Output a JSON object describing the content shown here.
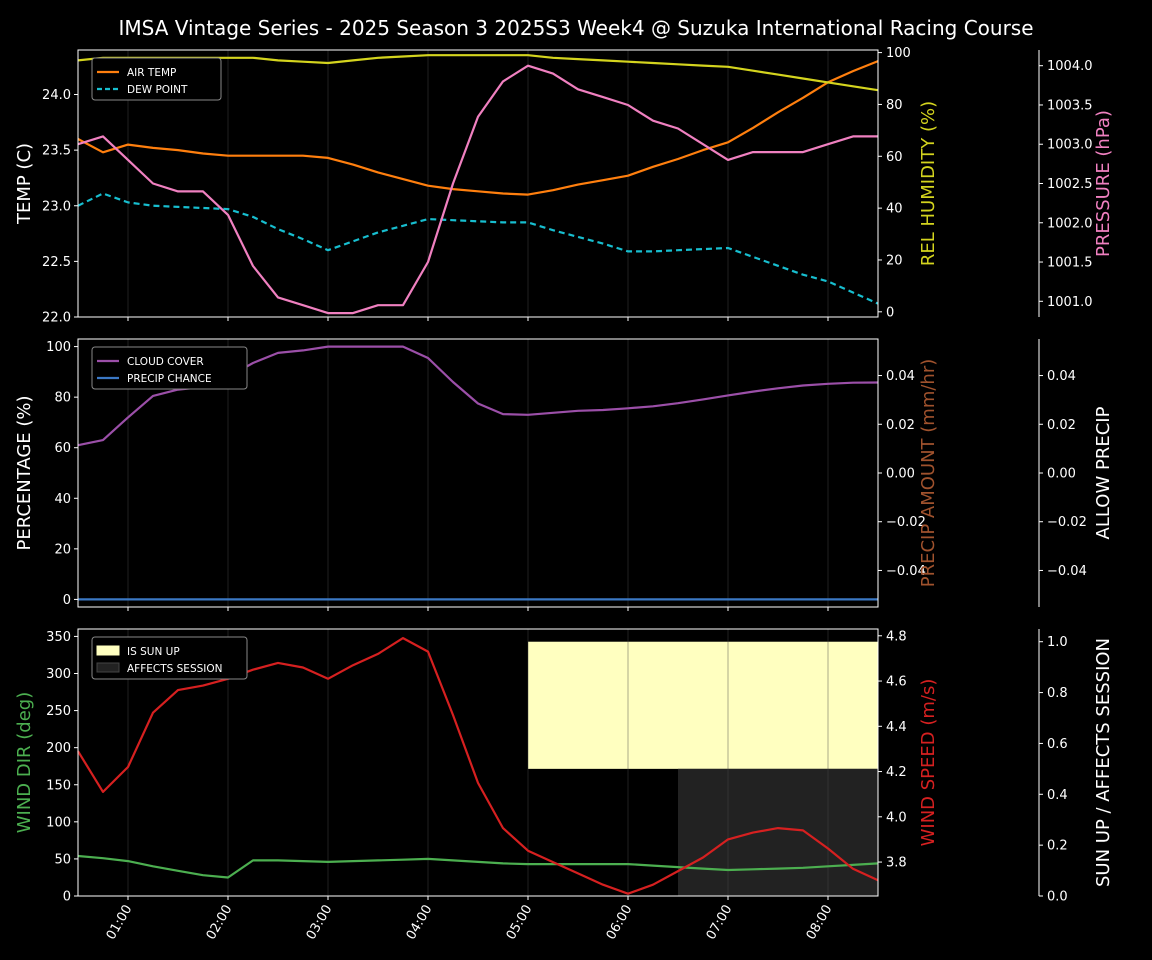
{
  "title": "IMSA Vintage Series - 2025 Season 3 2025S3 Week4 @ Suzuka International Racing Course",
  "x_ticks": [
    "01:00",
    "02:00",
    "03:00",
    "04:00",
    "05:00",
    "06:00",
    "07:00",
    "08:00"
  ],
  "chart_data": [
    {
      "type": "line",
      "panel": "temperature",
      "x": [
        0.5,
        0.75,
        1.0,
        1.25,
        1.5,
        1.75,
        2.0,
        2.25,
        2.5,
        2.75,
        3.0,
        3.25,
        3.5,
        3.75,
        4.0,
        4.25,
        4.5,
        4.75,
        5.0,
        5.25,
        5.5,
        5.75,
        6.0,
        6.25,
        6.5,
        6.75,
        7.0,
        7.25,
        7.5,
        7.75,
        8.0,
        8.25,
        8.5
      ],
      "xlim": [
        0.5,
        8.5
      ],
      "left_axis": {
        "label": "TEMP (C)",
        "ylim": [
          22.0,
          24.4
        ],
        "ticks": [
          "22.0",
          "22.5",
          "23.0",
          "23.5",
          "24.0"
        ]
      },
      "right_axis": {
        "label": "REL HUMIDITY (%)",
        "ylim": [
          -2,
          101
        ],
        "ticks": [
          "0",
          "20",
          "40",
          "60",
          "80",
          "100"
        ]
      },
      "far_right_axis": {
        "label": "PRESSURE (hPa)",
        "ylim": [
          1000.8,
          1004.2
        ],
        "ticks": [
          "1001.0",
          "1001.5",
          "1002.0",
          "1002.5",
          "1003.0",
          "1003.5",
          "1004.0"
        ]
      },
      "series": [
        {
          "name": "AIR TEMP",
          "axis": "left",
          "color": "#ff7f0e",
          "dashed": false,
          "values": [
            23.6,
            23.48,
            23.55,
            23.52,
            23.5,
            23.47,
            23.45,
            23.45,
            23.45,
            23.45,
            23.43,
            23.37,
            23.3,
            23.24,
            23.18,
            23.15,
            23.13,
            23.11,
            23.1,
            23.14,
            23.19,
            23.23,
            23.27,
            23.35,
            23.42,
            23.5,
            23.57,
            23.7,
            23.84,
            23.97,
            24.11,
            24.21,
            24.3
          ]
        },
        {
          "name": "DEW POINT",
          "axis": "left",
          "color": "#17becf",
          "dashed": true,
          "values": [
            23.0,
            23.11,
            23.03,
            23.0,
            22.99,
            22.98,
            22.97,
            22.9,
            22.79,
            22.7,
            22.6,
            22.68,
            22.76,
            22.82,
            22.88,
            22.87,
            22.86,
            22.85,
            22.85,
            22.78,
            22.72,
            22.66,
            22.59,
            22.59,
            22.6,
            22.61,
            22.62,
            22.54,
            22.46,
            22.38,
            22.32,
            22.22,
            22.12
          ]
        },
        {
          "name": "REL HUMIDITY",
          "axis": "right",
          "color": "#d4d41e",
          "dashed": false,
          "values": [
            97,
            98,
            98,
            98,
            98,
            98,
            98,
            98,
            97,
            96.5,
            96,
            97,
            98,
            98.5,
            99,
            99,
            99,
            99,
            99,
            98,
            97.5,
            97,
            96.5,
            96,
            95.5,
            95,
            94.5,
            93,
            91.5,
            90,
            88.5,
            87,
            85.5
          ]
        },
        {
          "name": "PRESSURE",
          "axis": "far_right",
          "color": "#f080c0",
          "dashed": false,
          "values": [
            1003.0,
            1003.1,
            1002.8,
            1002.5,
            1002.4,
            1002.4,
            1002.1,
            1001.45,
            1001.05,
            1000.95,
            1000.85,
            1000.85,
            1000.95,
            1000.95,
            1001.5,
            1002.5,
            1003.35,
            1003.8,
            1004.0,
            1003.9,
            1003.7,
            1003.6,
            1003.5,
            1003.3,
            1003.2,
            1003.0,
            1002.8,
            1002.9,
            1002.9,
            1002.9,
            1003.0,
            1003.1,
            1003.1
          ]
        }
      ]
    },
    {
      "type": "line",
      "panel": "precipitation",
      "x": [
        0.5,
        0.75,
        1.0,
        1.25,
        1.5,
        1.75,
        2.0,
        2.25,
        2.5,
        2.75,
        3.0,
        3.25,
        3.5,
        3.75,
        4.0,
        4.25,
        4.5,
        4.75,
        5.0,
        5.25,
        5.5,
        5.75,
        6.0,
        6.25,
        6.5,
        6.75,
        7.0,
        7.25,
        7.5,
        7.75,
        8.0,
        8.25,
        8.5
      ],
      "xlim": [
        0.5,
        8.5
      ],
      "left_axis": {
        "label": "PERCENTAGE (%)",
        "ylim": [
          -3,
          103
        ],
        "ticks": [
          "0",
          "20",
          "40",
          "60",
          "80",
          "100"
        ]
      },
      "right_axis": {
        "label": "PRECIP AMOUNT (mm/hr)",
        "ylim": [
          -0.055,
          0.055
        ],
        "ticks": [
          "−0.04",
          "−0.02",
          "0.00",
          "0.02",
          "0.04"
        ]
      },
      "far_right_axis": {
        "label": "ALLOW PRECIP",
        "ylim": [
          -0.055,
          0.055
        ],
        "ticks": [
          "−0.04",
          "−0.02",
          "0.00",
          "0.02",
          "0.04"
        ]
      },
      "series": [
        {
          "name": "CLOUD COVER",
          "axis": "left",
          "color": "#9b4fa8",
          "dashed": false,
          "values": [
            61,
            63,
            72,
            80.5,
            83,
            84,
            88,
            93.5,
            97.5,
            98.5,
            100,
            100,
            100,
            100,
            95.5,
            86,
            77.5,
            73.3,
            73,
            73.8,
            74.6,
            74.9,
            75.6,
            76.4,
            77.6,
            79.1,
            80.7,
            82.2,
            83.5,
            84.6,
            85.3,
            85.7,
            85.8
          ]
        },
        {
          "name": "PRECIP CHANCE",
          "axis": "left",
          "color": "#3b78c4",
          "dashed": false,
          "values": [
            0,
            0,
            0,
            0,
            0,
            0,
            0,
            0,
            0,
            0,
            0,
            0,
            0,
            0,
            0,
            0,
            0,
            0,
            0,
            0,
            0,
            0,
            0,
            0,
            0,
            0,
            0,
            0,
            0,
            0,
            0,
            0,
            0
          ]
        }
      ]
    },
    {
      "type": "line",
      "panel": "wind",
      "x": [
        0.5,
        0.75,
        1.0,
        1.25,
        1.5,
        1.75,
        2.0,
        2.25,
        2.5,
        2.75,
        3.0,
        3.25,
        3.5,
        3.75,
        4.0,
        4.25,
        4.5,
        4.75,
        5.0,
        5.25,
        5.5,
        5.75,
        6.0,
        6.25,
        6.5,
        6.75,
        7.0,
        7.25,
        7.5,
        7.75,
        8.0,
        8.25,
        8.5
      ],
      "xlim": [
        0.5,
        8.5
      ],
      "left_axis": {
        "label": "WIND DIR (deg)",
        "ylim": [
          0,
          360
        ],
        "ticks": [
          "0",
          "50",
          "100",
          "150",
          "200",
          "250",
          "300",
          "350"
        ]
      },
      "right_axis": {
        "label": "WIND SPEED (m/s)",
        "ylim": [
          3.65,
          4.83
        ],
        "ticks": [
          "3.8",
          "4.0",
          "4.2",
          "4.4",
          "4.6",
          "4.8"
        ]
      },
      "far_right_axis": {
        "label": "SUN UP / AFFECTS SESSION",
        "ylim": [
          0,
          1.05
        ],
        "ticks": [
          "0.0",
          "0.2",
          "0.4",
          "0.6",
          "0.8",
          "1.0"
        ]
      },
      "series": [
        {
          "name": "WIND DIR",
          "axis": "left",
          "color": "#4caf50",
          "dashed": false,
          "values": [
            54,
            51,
            47,
            40,
            34,
            28,
            25,
            48,
            48,
            47,
            46,
            47,
            48,
            49,
            50,
            48,
            46,
            44,
            43,
            43,
            43,
            43,
            43,
            41,
            39,
            37,
            35,
            36,
            37,
            38,
            40,
            42,
            44
          ]
        },
        {
          "name": "WIND SPEED",
          "axis": "right",
          "color": "#d62020",
          "dashed": false,
          "values": [
            4.29,
            4.11,
            4.22,
            4.46,
            4.56,
            4.58,
            4.61,
            4.65,
            4.68,
            4.66,
            4.61,
            4.67,
            4.72,
            4.79,
            4.73,
            4.45,
            4.15,
            3.95,
            3.85,
            3.8,
            3.75,
            3.7,
            3.66,
            3.7,
            3.76,
            3.82,
            3.9,
            3.93,
            3.95,
            3.94,
            3.86,
            3.77,
            3.72
          ]
        }
      ],
      "bands": [
        {
          "name": "IS SUN UP",
          "color": "#ffffc0",
          "x_start": 5.0,
          "x_end": 8.5,
          "y_low": 0.5,
          "y_high": 1.0
        },
        {
          "name": "AFFECTS SESSION",
          "color": "#222222",
          "x_start": 6.5,
          "x_end": 8.5,
          "y_low": 0.0,
          "y_high": 0.5
        }
      ]
    }
  ]
}
